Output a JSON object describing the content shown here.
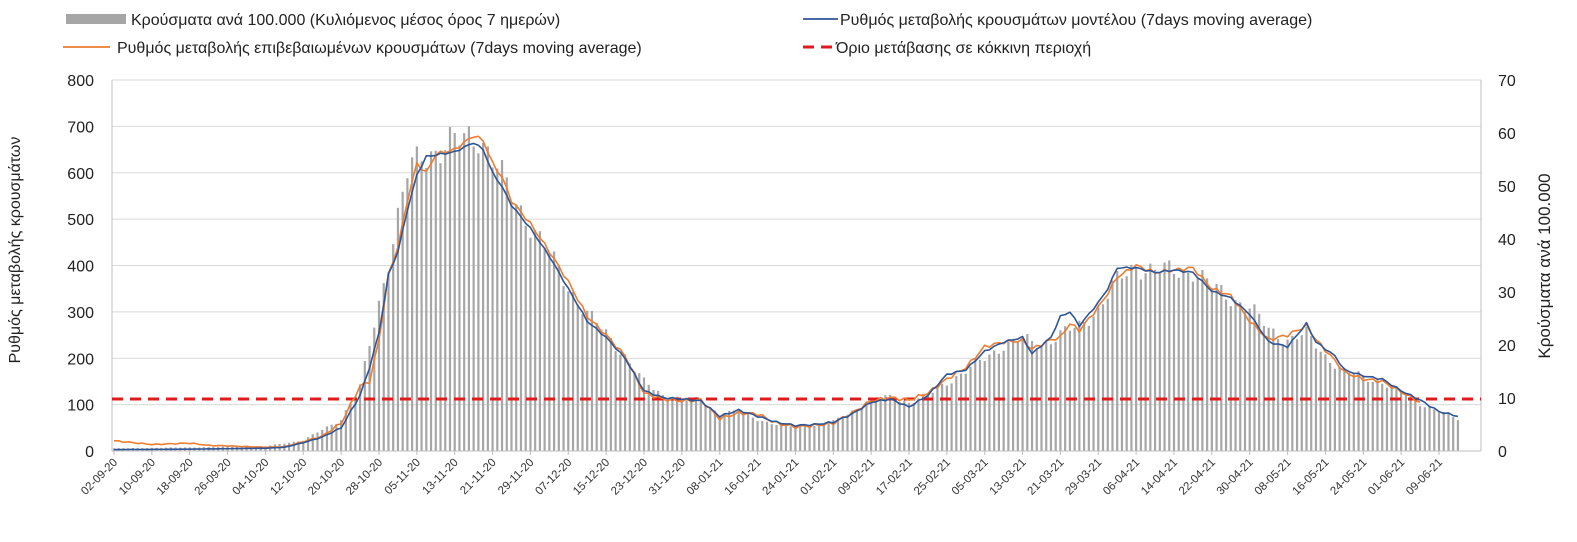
{
  "chart_data": {
    "type": "bar",
    "legend": {
      "placement": "top",
      "bars_label": "Κρούσματα ανά 100.000 (Κυλιόμενος μέσος όρος 7 ημερών)",
      "model_label": "Ρυθμός μεταβολής κρουσμάτων μοντέλου (7days moving average)",
      "confirmed_label": "Ρυθμός μεταβολής επιβεβαιωμένων κρουσμάτων (7days moving average)",
      "threshold_label": "Όριο μετάβασης σε κόκκινη περιοχή"
    },
    "ylabel_left": "Ρυθμός μεταβολής κρουσμάτων",
    "ylabel_right": "Κρούσματα ανά 100.000",
    "ylim_left": [
      0,
      800
    ],
    "ylim_right": [
      0,
      70
    ],
    "yticks_left": [
      "0",
      "100",
      "200",
      "300",
      "400",
      "500",
      "600",
      "700",
      "800"
    ],
    "yticks_right": [
      "0",
      "10",
      "20",
      "30",
      "40",
      "50",
      "60",
      "70"
    ],
    "grid": true,
    "x_tick_labels": [
      "02-09-20",
      "10-09-20",
      "18-09-20",
      "26-09-20",
      "04-10-20",
      "12-10-20",
      "20-10-20",
      "28-10-20",
      "05-11-20",
      "13-11-20",
      "21-11-20",
      "29-11-20",
      "07-12-20",
      "15-12-20",
      "23-12-20",
      "31-12-20",
      "08-01-21",
      "16-01-21",
      "24-01-21",
      "01-02-21",
      "09-02-21",
      "17-02-21",
      "25-02-21",
      "05-03-21",
      "13-03-21",
      "21-03-21",
      "29-03-21",
      "06-04-21",
      "14-04-21",
      "22-04-21",
      "30-04-21",
      "08-05-21",
      "16-05-21",
      "24-05-21",
      "01-06-21",
      "09-06-21"
    ],
    "threshold_value": 112,
    "colors": {
      "bars": "#a6a6a6",
      "model": "#2f5597",
      "confirmed": "#ed7d31",
      "threshold": "#e01b1b",
      "grid": "#d9d9d9"
    },
    "series": [
      {
        "name": "Κρούσματα ανά 100.000 (Κυλιόμενος μέσος όρος 7 ημερών)",
        "axis": "right",
        "keypoints": [
          [
            "02-09-20",
            0.5
          ],
          [
            "20-09-20",
            0.7
          ],
          [
            "04-10-20",
            0.9
          ],
          [
            "12-10-20",
            2
          ],
          [
            "20-10-20",
            6
          ],
          [
            "24-10-20",
            12
          ],
          [
            "28-10-20",
            28
          ],
          [
            "31-10-20",
            40
          ],
          [
            "03-11-20",
            52
          ],
          [
            "06-11-20",
            56
          ],
          [
            "13-11-20",
            58
          ],
          [
            "18-11-20",
            60
          ],
          [
            "21-11-20",
            55
          ],
          [
            "25-11-20",
            48
          ],
          [
            "29-11-20",
            43
          ],
          [
            "03-12-20",
            37
          ],
          [
            "07-12-20",
            31
          ],
          [
            "11-12-20",
            26
          ],
          [
            "15-12-20",
            22
          ],
          [
            "19-12-20",
            18
          ],
          [
            "23-12-20",
            13
          ],
          [
            "27-12-20",
            10.5
          ],
          [
            "31-12-20",
            9.8
          ],
          [
            "04-01-21",
            9.5
          ],
          [
            "08-01-21",
            7
          ],
          [
            "12-01-21",
            7.5
          ],
          [
            "16-01-21",
            6
          ],
          [
            "20-01-21",
            5
          ],
          [
            "24-01-21",
            4.6
          ],
          [
            "28-01-21",
            4.8
          ],
          [
            "01-02-21",
            5.5
          ],
          [
            "05-02-21",
            7.5
          ],
          [
            "09-02-21",
            9.5
          ],
          [
            "13-02-21",
            10.2
          ],
          [
            "17-02-21",
            9.2
          ],
          [
            "21-02-21",
            10.5
          ],
          [
            "25-02-21",
            13
          ],
          [
            "01-03-21",
            15
          ],
          [
            "05-03-21",
            17.5
          ],
          [
            "09-03-21",
            20
          ],
          [
            "13-03-21",
            21
          ],
          [
            "17-03-21",
            20
          ],
          [
            "21-03-21",
            22
          ],
          [
            "25-03-21",
            23.5
          ],
          [
            "29-03-21",
            27
          ],
          [
            "02-04-21",
            32
          ],
          [
            "06-04-21",
            35
          ],
          [
            "10-04-21",
            34
          ],
          [
            "14-04-21",
            34
          ],
          [
            "18-04-21",
            34
          ],
          [
            "22-04-21",
            31
          ],
          [
            "26-04-21",
            29
          ],
          [
            "30-04-21",
            27
          ],
          [
            "04-05-21",
            23
          ],
          [
            "08-05-21",
            21
          ],
          [
            "12-05-21",
            22
          ],
          [
            "16-05-21",
            18
          ],
          [
            "20-05-21",
            15
          ],
          [
            "24-05-21",
            14
          ],
          [
            "28-05-21",
            13
          ],
          [
            "01-06-21",
            11
          ],
          [
            "05-06-21",
            9
          ],
          [
            "09-06-21",
            7.5
          ],
          [
            "13-06-21",
            6
          ]
        ]
      },
      {
        "name": "Ρυθμός μεταβολής κρουσμάτων μοντέλου (7days moving average)",
        "axis": "left",
        "keypoints": [
          [
            "02-09-20",
            3
          ],
          [
            "18-09-20",
            4
          ],
          [
            "04-10-20",
            6
          ],
          [
            "08-10-20",
            8
          ],
          [
            "12-10-20",
            18
          ],
          [
            "16-10-20",
            30
          ],
          [
            "20-10-20",
            50
          ],
          [
            "24-10-20",
            120
          ],
          [
            "26-10-20",
            180
          ],
          [
            "28-10-20",
            255
          ],
          [
            "30-10-20",
            380
          ],
          [
            "01-11-20",
            430
          ],
          [
            "03-11-20",
            520
          ],
          [
            "05-11-20",
            595
          ],
          [
            "07-11-20",
            635
          ],
          [
            "13-11-20",
            645
          ],
          [
            "17-11-20",
            665
          ],
          [
            "19-11-20",
            650
          ],
          [
            "21-11-20",
            600
          ],
          [
            "23-11-20",
            570
          ],
          [
            "25-11-20",
            530
          ],
          [
            "29-11-20",
            480
          ],
          [
            "03-12-20",
            420
          ],
          [
            "07-12-20",
            350
          ],
          [
            "11-12-20",
            280
          ],
          [
            "15-12-20",
            245
          ],
          [
            "19-12-20",
            200
          ],
          [
            "23-12-20",
            130
          ],
          [
            "27-12-20",
            115
          ],
          [
            "31-12-20",
            112
          ],
          [
            "04-01-21",
            108
          ],
          [
            "08-01-21",
            75
          ],
          [
            "12-01-21",
            88
          ],
          [
            "16-01-21",
            75
          ],
          [
            "20-01-21",
            62
          ],
          [
            "24-01-21",
            55
          ],
          [
            "28-01-21",
            57
          ],
          [
            "01-02-21",
            62
          ],
          [
            "05-02-21",
            80
          ],
          [
            "09-02-21",
            105
          ],
          [
            "13-02-21",
            112
          ],
          [
            "17-02-21",
            95
          ],
          [
            "21-02-21",
            120
          ],
          [
            "25-02-21",
            165
          ],
          [
            "01-03-21",
            175
          ],
          [
            "05-03-21",
            215
          ],
          [
            "09-03-21",
            235
          ],
          [
            "13-03-21",
            245
          ],
          [
            "15-03-21",
            210
          ],
          [
            "19-03-21",
            245
          ],
          [
            "21-03-21",
            290
          ],
          [
            "23-03-21",
            300
          ],
          [
            "25-03-21",
            270
          ],
          [
            "29-03-21",
            320
          ],
          [
            "31-03-21",
            350
          ],
          [
            "02-04-21",
            395
          ],
          [
            "06-04-21",
            395
          ],
          [
            "10-04-21",
            385
          ],
          [
            "14-04-21",
            390
          ],
          [
            "18-04-21",
            385
          ],
          [
            "22-04-21",
            345
          ],
          [
            "26-04-21",
            330
          ],
          [
            "30-04-21",
            295
          ],
          [
            "04-05-21",
            235
          ],
          [
            "08-05-21",
            225
          ],
          [
            "12-05-21",
            275
          ],
          [
            "14-05-21",
            235
          ],
          [
            "18-05-21",
            205
          ],
          [
            "20-05-21",
            175
          ],
          [
            "24-05-21",
            162
          ],
          [
            "28-05-21",
            155
          ],
          [
            "01-06-21",
            130
          ],
          [
            "05-06-21",
            110
          ],
          [
            "09-06-21",
            85
          ],
          [
            "13-06-21",
            75
          ]
        ]
      },
      {
        "name": "Ρυθμός μεταβολής επιβεβαιωμένων κρουσμάτων (7days moving average)",
        "axis": "left",
        "keypoints": [
          [
            "02-09-20",
            22
          ],
          [
            "06-09-20",
            18
          ],
          [
            "10-09-20",
            14
          ],
          [
            "18-09-20",
            17
          ],
          [
            "22-09-20",
            12
          ],
          [
            "26-09-20",
            11
          ],
          [
            "04-10-20",
            8
          ],
          [
            "08-10-20",
            9
          ],
          [
            "12-10-20",
            20
          ],
          [
            "16-10-20",
            32
          ],
          [
            "20-10-20",
            60
          ],
          [
            "24-10-20",
            140
          ],
          [
            "26-10-20",
            150
          ],
          [
            "28-10-20",
            240
          ],
          [
            "30-10-20",
            380
          ],
          [
            "01-11-20",
            440
          ],
          [
            "03-11-20",
            540
          ],
          [
            "05-11-20",
            620
          ],
          [
            "07-11-20",
            600
          ],
          [
            "09-11-20",
            640
          ],
          [
            "13-11-20",
            650
          ],
          [
            "17-11-20",
            680
          ],
          [
            "19-11-20",
            670
          ],
          [
            "21-11-20",
            620
          ],
          [
            "23-11-20",
            590
          ],
          [
            "25-11-20",
            540
          ],
          [
            "29-11-20",
            490
          ],
          [
            "03-12-20",
            430
          ],
          [
            "07-12-20",
            365
          ],
          [
            "11-12-20",
            290
          ],
          [
            "15-12-20",
            250
          ],
          [
            "19-12-20",
            205
          ],
          [
            "23-12-20",
            125
          ],
          [
            "27-12-20",
            112
          ],
          [
            "31-12-20",
            108
          ],
          [
            "04-01-21",
            110
          ],
          [
            "08-01-21",
            70
          ],
          [
            "12-01-21",
            82
          ],
          [
            "16-01-21",
            80
          ],
          [
            "20-01-21",
            60
          ],
          [
            "24-01-21",
            52
          ],
          [
            "28-01-21",
            55
          ],
          [
            "01-02-21",
            60
          ],
          [
            "05-02-21",
            82
          ],
          [
            "09-02-21",
            108
          ],
          [
            "13-02-21",
            115
          ],
          [
            "17-02-21",
            110
          ],
          [
            "21-02-21",
            125
          ],
          [
            "25-02-21",
            155
          ],
          [
            "01-03-21",
            180
          ],
          [
            "05-03-21",
            225
          ],
          [
            "09-03-21",
            235
          ],
          [
            "13-03-21",
            238
          ],
          [
            "15-03-21",
            220
          ],
          [
            "19-03-21",
            240
          ],
          [
            "21-03-21",
            245
          ],
          [
            "23-03-21",
            275
          ],
          [
            "25-03-21",
            260
          ],
          [
            "29-03-21",
            310
          ],
          [
            "31-03-21",
            340
          ],
          [
            "02-04-21",
            375
          ],
          [
            "06-04-21",
            400
          ],
          [
            "10-04-21",
            385
          ],
          [
            "14-04-21",
            390
          ],
          [
            "18-04-21",
            395
          ],
          [
            "22-04-21",
            350
          ],
          [
            "26-04-21",
            335
          ],
          [
            "30-04-21",
            280
          ],
          [
            "04-05-21",
            240
          ],
          [
            "08-05-21",
            250
          ],
          [
            "12-05-21",
            270
          ],
          [
            "14-05-21",
            240
          ],
          [
            "18-05-21",
            195
          ],
          [
            "20-05-21",
            170
          ],
          [
            "24-05-21",
            155
          ],
          [
            "28-05-21",
            150
          ],
          [
            "01-06-21",
            128
          ],
          [
            "05-06-21",
            105
          ]
        ]
      }
    ]
  }
}
